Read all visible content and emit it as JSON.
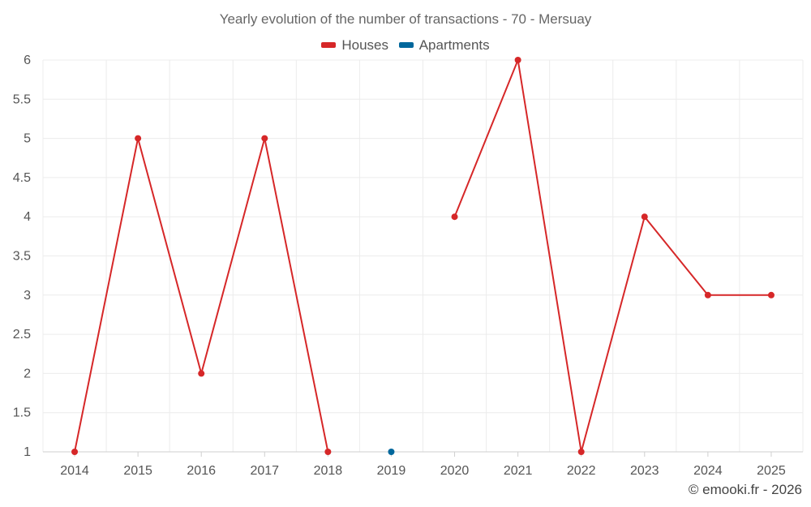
{
  "chart_data": {
    "type": "line",
    "title": "Yearly evolution of the number of transactions - 70 - Mersuay",
    "categories": [
      "2014",
      "2015",
      "2016",
      "2017",
      "2018",
      "2019",
      "2020",
      "2021",
      "2022",
      "2023",
      "2024",
      "2025"
    ],
    "series": [
      {
        "name": "Houses",
        "color": "#d62728",
        "values": [
          1,
          5,
          2,
          5,
          1,
          null,
          4,
          6,
          1,
          4,
          3,
          3
        ]
      },
      {
        "name": "Apartments",
        "color": "#00679c",
        "values": [
          null,
          null,
          null,
          null,
          null,
          1,
          null,
          null,
          null,
          null,
          null,
          null
        ]
      }
    ],
    "yticks": [
      "1",
      "1.5",
      "2",
      "2.5",
      "3",
      "3.5",
      "4",
      "4.5",
      "5",
      "5.5",
      "6"
    ],
    "ylim": [
      1,
      6
    ],
    "grid": true,
    "legend_position": "top-center"
  },
  "credit": "© emooki.fr - 2026"
}
